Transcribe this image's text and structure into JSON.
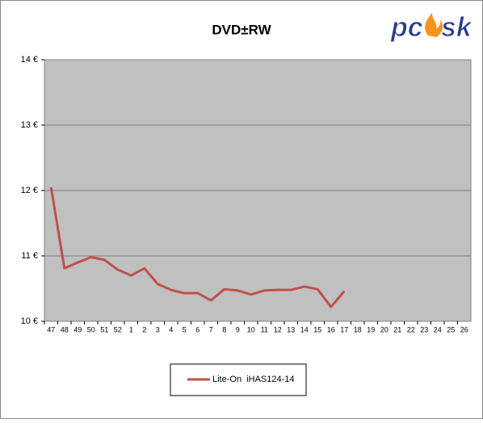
{
  "chart_data": {
    "type": "line",
    "title": "DVD±RW",
    "logo": {
      "left": "pc",
      "right": "sk"
    },
    "categories": [
      "47",
      "48",
      "49",
      "50",
      "51",
      "52",
      "1",
      "2",
      "3",
      "4",
      "5",
      "6",
      "7",
      "8",
      "9",
      "10",
      "11",
      "12",
      "13",
      "14",
      "15",
      "16",
      "17",
      "18",
      "19",
      "20",
      "21",
      "22",
      "23",
      "24",
      "25",
      "26"
    ],
    "series": [
      {
        "name": "Lite-On  iHAS124-14",
        "color": "#c0504d",
        "values": [
          12.05,
          10.81,
          10.9,
          10.98,
          10.94,
          10.79,
          10.7,
          10.81,
          10.57,
          10.48,
          10.43,
          10.43,
          10.32,
          10.49,
          10.47,
          10.41,
          10.47,
          10.48,
          10.48,
          10.53,
          10.49,
          10.22,
          10.46,
          null,
          null,
          null,
          null,
          null,
          null,
          null,
          null,
          null
        ]
      }
    ],
    "ylim": [
      10,
      14
    ],
    "yticks": [
      {
        "value": 10,
        "label": "10 €"
      },
      {
        "value": 11,
        "label": "11 €"
      },
      {
        "value": 12,
        "label": "12 €"
      },
      {
        "value": 13,
        "label": "13 €"
      },
      {
        "value": 14,
        "label": "14 €"
      }
    ],
    "grid": true,
    "legend": "bottom"
  }
}
